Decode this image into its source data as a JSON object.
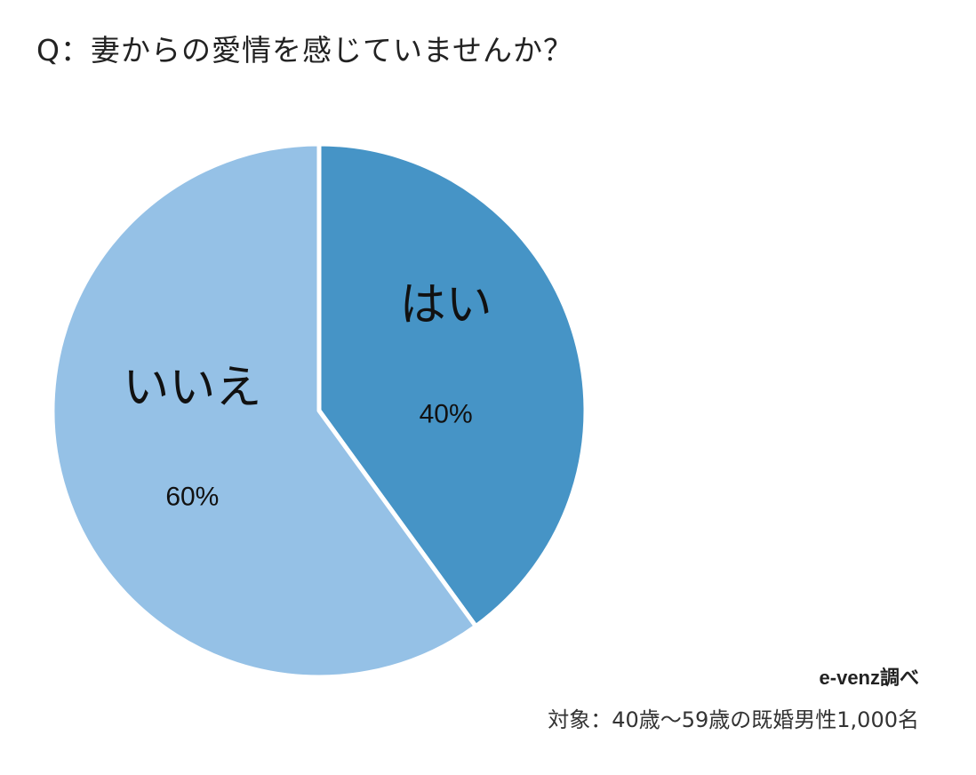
{
  "title": "Q：妻からの愛情を感じていませんか？",
  "source": "e-venz調べ",
  "target": "対象：40歳〜59歳の既婚男性1,000名",
  "chart_data": {
    "type": "pie",
    "title": "Q：妻からの愛情を感じていませんか？",
    "categories": [
      "はい",
      "いいえ"
    ],
    "values": [
      40,
      60
    ],
    "value_labels": [
      "40%",
      "60%"
    ],
    "colors": [
      "#4694c6",
      "#95c1e6"
    ],
    "start_angle": "12 o'clock",
    "direction": "clockwise"
  }
}
